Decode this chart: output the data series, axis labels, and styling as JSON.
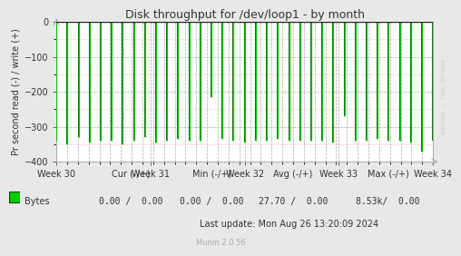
{
  "title": "Disk throughput for /dev/loop1 - by month",
  "ylabel": "Pr second read (-) / write (+)",
  "ylim": [
    -400,
    0
  ],
  "yticks": [
    0,
    -100,
    -200,
    -300,
    -400
  ],
  "bg_color": "#e8e8e8",
  "plot_bg_color": "#ffffff",
  "line_color_dark": "#007700",
  "spike_color": "#00cc00",
  "week_labels": [
    "Week 30",
    "Week 31",
    "Week 32",
    "Week 33",
    "Week 34"
  ],
  "title_color": "#333333",
  "axis_color": "#333333",
  "watermark": "RRDTOOL / TOBI OETIKER",
  "legend_label": "Bytes",
  "legend_color": "#00cc00",
  "footer_header": "         Cur (-/+)         Min (-/+)         Avg (-/+)        Max (-/+)",
  "footer_values_left": "Bytes",
  "footer_cur": "0.00 /  0.00",
  "footer_min": "0.00 /  0.00",
  "footer_avg": "27.70 /  0.00",
  "footer_max": "8.53k/  0.00",
  "footer_lastupdate": "Last update: Mon Aug 26 13:20:09 2024",
  "footer_munin": "Munin 2.0.56",
  "n_spikes": 35,
  "spike_depths": [
    -340,
    -350,
    -330,
    -345,
    -340,
    -340,
    -350,
    -340,
    -330,
    -345,
    -340,
    -335,
    -340,
    -340,
    -215,
    -335,
    -340,
    -345,
    -340,
    -340,
    -335,
    -340,
    -340,
    -340,
    -340,
    -345,
    -270,
    -340,
    -340,
    -335,
    -340,
    -340,
    -345,
    -370,
    -340
  ]
}
